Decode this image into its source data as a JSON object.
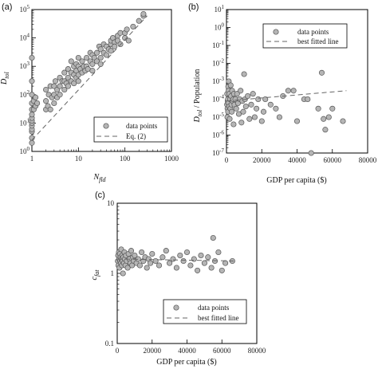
{
  "chart_data": [
    {
      "panel": "(a)",
      "type": "scatter",
      "xscale": "log",
      "yscale": "log",
      "xlim": [
        1,
        1000
      ],
      "ylim": [
        1,
        100000
      ],
      "xticks": [
        "1",
        "10",
        "100",
        "1000"
      ],
      "yticks": [
        "10^0",
        "10^1",
        "10^2",
        "10^3",
        "10^4",
        "10^5"
      ],
      "xlabel": "N_fld",
      "ylabel": "D_tol",
      "legend": {
        "position": "bottom-right",
        "entries": [
          "data points",
          "Eq. (2)"
        ]
      },
      "points": [
        [
          1,
          2
        ],
        [
          1,
          3
        ],
        [
          1,
          5
        ],
        [
          1,
          6
        ],
        [
          1,
          8
        ],
        [
          1,
          10
        ],
        [
          1,
          12
        ],
        [
          1,
          15
        ],
        [
          1,
          20
        ],
        [
          1,
          30
        ],
        [
          1,
          50
        ],
        [
          1,
          100
        ],
        [
          1,
          300
        ],
        [
          1,
          2000
        ],
        [
          1.1,
          30
        ],
        [
          1.1,
          60
        ],
        [
          1.2,
          40
        ],
        [
          1.2,
          80
        ],
        [
          1.3,
          50
        ],
        [
          2,
          30
        ],
        [
          2,
          60
        ],
        [
          2,
          150
        ],
        [
          2.2,
          40
        ],
        [
          2.3,
          100
        ],
        [
          2.5,
          200
        ],
        [
          2.5,
          30
        ],
        [
          2.7,
          80
        ],
        [
          3,
          100
        ],
        [
          3,
          200
        ],
        [
          3,
          50
        ],
        [
          3.2,
          300
        ],
        [
          3.5,
          150
        ],
        [
          3.5,
          80
        ],
        [
          4,
          200
        ],
        [
          4,
          400
        ],
        [
          4,
          100
        ],
        [
          4.5,
          300
        ],
        [
          5,
          150
        ],
        [
          5,
          300
        ],
        [
          5,
          600
        ],
        [
          5.5,
          250
        ],
        [
          6,
          400
        ],
        [
          6,
          800
        ],
        [
          6,
          200
        ],
        [
          7,
          300
        ],
        [
          7,
          600
        ],
        [
          7,
          1500
        ],
        [
          8,
          500
        ],
        [
          8,
          1000
        ],
        [
          8,
          250
        ],
        [
          9,
          700
        ],
        [
          9,
          1200
        ],
        [
          9,
          400
        ],
        [
          10,
          500
        ],
        [
          10,
          1000
        ],
        [
          10,
          2000
        ],
        [
          10,
          300
        ],
        [
          11,
          800
        ],
        [
          12,
          600
        ],
        [
          12,
          1500
        ],
        [
          13,
          1000
        ],
        [
          14,
          700
        ],
        [
          15,
          2000
        ],
        [
          15,
          1000
        ],
        [
          16,
          800
        ],
        [
          18,
          1500
        ],
        [
          18,
          3000
        ],
        [
          20,
          1200
        ],
        [
          20,
          2500
        ],
        [
          20,
          700
        ],
        [
          22,
          2000
        ],
        [
          25,
          1500
        ],
        [
          25,
          3000
        ],
        [
          28,
          5000
        ],
        [
          30,
          2000
        ],
        [
          30,
          4000
        ],
        [
          30,
          1200
        ],
        [
          35,
          3000
        ],
        [
          35,
          6000
        ],
        [
          40,
          5000
        ],
        [
          40,
          2500
        ],
        [
          45,
          4000
        ],
        [
          50,
          6000
        ],
        [
          50,
          8000
        ],
        [
          50,
          3500
        ],
        [
          55,
          10000
        ],
        [
          60,
          7000
        ],
        [
          60,
          5000
        ],
        [
          70,
          12000
        ],
        [
          70,
          8000
        ],
        [
          80,
          6000
        ],
        [
          80,
          15000
        ],
        [
          100,
          10000
        ],
        [
          100,
          15000
        ],
        [
          110,
          20000
        ],
        [
          120,
          8000
        ],
        [
          150,
          25000
        ],
        [
          200,
          40000
        ],
        [
          250,
          60000
        ],
        [
          250,
          70000
        ]
      ],
      "fit_line": [
        [
          1,
          2.5
        ],
        [
          300,
          60000
        ]
      ]
    },
    {
      "panel": "(b)",
      "type": "scatter",
      "xscale": "linear",
      "yscale": "log",
      "xlim": [
        0,
        80000
      ],
      "ylim": [
        1e-07,
        10
      ],
      "xticks": [
        "0",
        "20000",
        "40000",
        "60000",
        "80000"
      ],
      "yticks": [
        "10^-7",
        "10^-6",
        "10^-5",
        "10^-4",
        "10^-3",
        "10^-2",
        "10^-1",
        "10^0",
        "10^1"
      ],
      "xlabel": "GDP per capita ($)",
      "ylabel": "D_tol / Population",
      "legend": {
        "position": "top-right",
        "entries": [
          "data points",
          "best fitted line"
        ]
      },
      "points": [
        [
          300,
          5e-05
        ],
        [
          400,
          0.0002
        ],
        [
          500,
          1e-05
        ],
        [
          600,
          3e-05
        ],
        [
          700,
          8e-05
        ],
        [
          800,
          0.0001
        ],
        [
          900,
          2e-05
        ],
        [
          1000,
          0.0005
        ],
        [
          1100,
          6e-05
        ],
        [
          1200,
          0.0003
        ],
        [
          1300,
          0.001
        ],
        [
          1500,
          4e-05
        ],
        [
          1600,
          0.0002
        ],
        [
          1800,
          8e-06
        ],
        [
          2000,
          0.0001
        ],
        [
          2200,
          3e-05
        ],
        [
          2400,
          0.0006
        ],
        [
          2600,
          0.00015
        ],
        [
          2800,
          5e-05
        ],
        [
          3000,
          2e-05
        ],
        [
          3200,
          0.0003
        ],
        [
          3500,
          8e-05
        ],
        [
          3800,
          0.0001
        ],
        [
          4000,
          4e-06
        ],
        [
          4200,
          0.0002
        ],
        [
          4500,
          5e-05
        ],
        [
          5000,
          0.0001
        ],
        [
          5500,
          3e-05
        ],
        [
          6000,
          0.0002
        ],
        [
          6500,
          6e-05
        ],
        [
          7000,
          1.5e-05
        ],
        [
          7500,
          0.0001
        ],
        [
          8000,
          0.0003
        ],
        [
          8500,
          5e-06
        ],
        [
          9000,
          8e-05
        ],
        [
          9500,
          2e-05
        ],
        [
          10000,
          0.0025
        ],
        [
          10500,
          0.0001
        ],
        [
          11000,
          4e-05
        ],
        [
          12000,
          0.00015
        ],
        [
          13000,
          8e-06
        ],
        [
          14000,
          5e-05
        ],
        [
          15000,
          0.0002
        ],
        [
          16000,
          1e-05
        ],
        [
          17000,
          3e-05
        ],
        [
          18000,
          0.0001
        ],
        [
          20000,
          6e-06
        ],
        [
          21000,
          2e-05
        ],
        [
          22000,
          0.0001
        ],
        [
          25000,
          5e-05
        ],
        [
          28000,
          3e-05
        ],
        [
          30000,
          1e-05
        ],
        [
          32000,
          0.00015
        ],
        [
          35000,
          0.0003
        ],
        [
          38000,
          0.0003
        ],
        [
          40000,
          6e-06
        ],
        [
          44000,
          0.0001
        ],
        [
          46000,
          0.0001
        ],
        [
          48000,
          1e-07
        ],
        [
          52000,
          3e-05
        ],
        [
          54000,
          0.003
        ],
        [
          55000,
          8e-06
        ],
        [
          56000,
          2e-06
        ],
        [
          58000,
          1e-05
        ],
        [
          60000,
          3e-05
        ],
        [
          66000,
          6e-06
        ]
      ],
      "fit_line": [
        [
          0,
          8e-05
        ],
        [
          68000,
          0.0003
        ]
      ]
    },
    {
      "panel": "(c)",
      "type": "scatter",
      "xscale": "linear",
      "yscale": "log",
      "xlim": [
        0,
        80000
      ],
      "ylim": [
        0.1,
        10
      ],
      "xticks": [
        "0",
        "20000",
        "40000",
        "60000",
        "80000"
      ],
      "yticks": [
        "0.1",
        "1",
        "10"
      ],
      "xlabel": "GDP per capita ($)",
      "ylabel": "c_fat",
      "legend": {
        "position": "bottom-right",
        "entries": [
          "data points",
          "best fitted line"
        ]
      },
      "points": [
        [
          300,
          1.5
        ],
        [
          500,
          1.8
        ],
        [
          700,
          1.3
        ],
        [
          900,
          2.0
        ],
        [
          1100,
          1.6
        ],
        [
          1300,
          1.2
        ],
        [
          1500,
          1.9
        ],
        [
          1700,
          1.5
        ],
        [
          1900,
          1.7
        ],
        [
          2100,
          1.4
        ],
        [
          2300,
          2.2
        ],
        [
          2500,
          1.6
        ],
        [
          2700,
          1.3
        ],
        [
          2900,
          1.8
        ],
        [
          3100,
          1.5
        ],
        [
          3300,
          1.0
        ],
        [
          3500,
          1.7
        ],
        [
          3800,
          1.4
        ],
        [
          4100,
          2.0
        ],
        [
          4400,
          1.6
        ],
        [
          4700,
          1.3
        ],
        [
          5000,
          1.8
        ],
        [
          5500,
          1.5
        ],
        [
          6000,
          1.2
        ],
        [
          6500,
          1.9
        ],
        [
          7000,
          1.6
        ],
        [
          7500,
          1.4
        ],
        [
          8000,
          2.1
        ],
        [
          8500,
          1.3
        ],
        [
          9000,
          1.7
        ],
        [
          9500,
          1.5
        ],
        [
          10000,
          1.8
        ],
        [
          11000,
          1.4
        ],
        [
          12000,
          1.6
        ],
        [
          13000,
          1.3
        ],
        [
          14000,
          2.0
        ],
        [
          15000,
          1.5
        ],
        [
          16000,
          1.7
        ],
        [
          17000,
          1.2
        ],
        [
          18000,
          1.6
        ],
        [
          19000,
          1.4
        ],
        [
          20000,
          1.9
        ],
        [
          22000,
          1.5
        ],
        [
          24000,
          1.3
        ],
        [
          26000,
          1.7
        ],
        [
          28000,
          2.1
        ],
        [
          30000,
          1.4
        ],
        [
          32000,
          1.6
        ],
        [
          34000,
          1.2
        ],
        [
          36000,
          1.8
        ],
        [
          38000,
          1.5
        ],
        [
          40000,
          2.0
        ],
        [
          42000,
          1.3
        ],
        [
          44000,
          1.6
        ],
        [
          46000,
          1.1
        ],
        [
          48000,
          1.8
        ],
        [
          50000,
          1.4
        ],
        [
          52000,
          1.7
        ],
        [
          54000,
          1.2
        ],
        [
          55000,
          3.2
        ],
        [
          56000,
          1.5
        ],
        [
          58000,
          2.0
        ],
        [
          60000,
          1.1
        ],
        [
          62000,
          1.4
        ],
        [
          66000,
          1.5
        ]
      ],
      "fit_line": [
        [
          0,
          1.6
        ],
        [
          68000,
          1.5
        ]
      ]
    }
  ],
  "panels": {
    "a": {
      "label": "(a)",
      "xlabel": "N",
      "xlabel_sub": "fld",
      "ylabel": "D",
      "ylabel_sub": "tol",
      "legend_points": "data points",
      "legend_line": "Eq. (2)",
      "xticks": [
        "1",
        "10",
        "100",
        "1000"
      ]
    },
    "b": {
      "label": "(b)",
      "xlabel": "GDP per capita ($)",
      "ylabel": "D",
      "ylabel_sub": "tol",
      "ylabel_rest": " / Population",
      "legend_points": "data points",
      "legend_line": "best fitted line",
      "xticks": [
        "0",
        "20000",
        "40000",
        "60000",
        "80000"
      ]
    },
    "c": {
      "label": "(c)",
      "xlabel": "GDP per capita ($)",
      "ylabel": "c",
      "ylabel_sub": "fat",
      "legend_points": "data points",
      "legend_line": "best fitted line",
      "xticks": [
        "0",
        "20000",
        "40000",
        "60000",
        "80000"
      ],
      "yticks": [
        "0.1",
        "1",
        "10"
      ]
    }
  },
  "colors": {
    "marker_fill": "#b5b5b5",
    "marker_stroke": "#555555",
    "fit_line": "#666666",
    "axis": "#000000"
  }
}
